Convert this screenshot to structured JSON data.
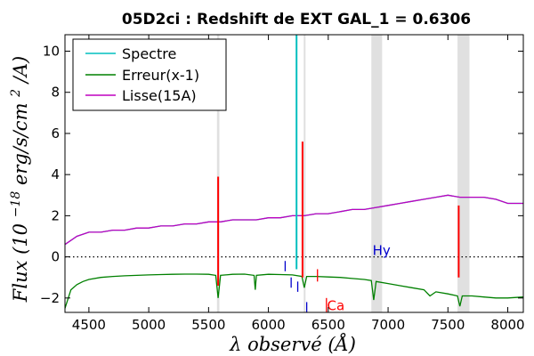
{
  "chart_data": {
    "type": "line",
    "title": "05D2ci : Redshift de EXT GAL_1 = 0.6306",
    "xlabel": "λ observé (Å)",
    "ylabel": "Flux (10^-18 erg/s/cm^2/A)",
    "ylabel_parts": {
      "prefix": "Flux (10",
      "exp": "−18",
      "mid": "erg/s/cm",
      "sq": "2",
      "suffix": "/A)"
    },
    "xlim": [
      4300,
      8130
    ],
    "ylim": [
      -2.7,
      10.8
    ],
    "x_ticks": [
      4500,
      5000,
      5500,
      6000,
      6500,
      7000,
      7500,
      8000
    ],
    "y_ticks": [
      -2,
      0,
      2,
      4,
      6,
      8,
      10
    ],
    "legend": {
      "placement": "top-left",
      "entries": [
        "Spectre",
        "Erreur(x-1)",
        "Lisse(15A)"
      ]
    },
    "series_colors": {
      "Spectre": "#00bfbf",
      "Erreur(x-1)": "#008000",
      "Lisse(15A)": "#bf00bf"
    },
    "series": [
      {
        "name": "Spectre",
        "x": [
          4300,
          4400,
          4500,
          4600,
          4700,
          4800,
          4900,
          5000,
          5100,
          5200,
          5300,
          5400,
          5500,
          5600,
          5700,
          5800,
          5900,
          6000,
          6100,
          6200,
          6300,
          6400,
          6500,
          6600,
          6700,
          6800,
          6900,
          7000,
          7100,
          7200,
          7300,
          7400,
          7500,
          7600,
          7700,
          7800,
          7900,
          8000,
          8130
        ],
        "y": [
          0.6,
          1.0,
          1.2,
          1.2,
          1.3,
          1.3,
          1.4,
          1.4,
          1.5,
          1.5,
          1.6,
          1.6,
          1.7,
          1.7,
          1.8,
          1.8,
          1.8,
          1.9,
          1.9,
          2.0,
          2.0,
          2.1,
          2.1,
          2.2,
          2.3,
          2.3,
          2.4,
          2.5,
          2.6,
          2.7,
          2.8,
          2.9,
          3.0,
          2.9,
          2.9,
          2.9,
          2.8,
          2.6,
          2.6
        ]
      },
      {
        "name": "Lisse(15A)",
        "x": [
          4300,
          4400,
          4500,
          4600,
          4700,
          4800,
          4900,
          5000,
          5100,
          5200,
          5300,
          5400,
          5500,
          5600,
          5700,
          5800,
          5900,
          6000,
          6100,
          6200,
          6300,
          6400,
          6500,
          6600,
          6700,
          6800,
          6900,
          7000,
          7100,
          7200,
          7300,
          7400,
          7500,
          7600,
          7700,
          7800,
          7900,
          8000,
          8130
        ],
        "y": [
          0.6,
          1.0,
          1.2,
          1.2,
          1.3,
          1.3,
          1.4,
          1.4,
          1.5,
          1.5,
          1.6,
          1.6,
          1.7,
          1.7,
          1.8,
          1.8,
          1.8,
          1.9,
          1.9,
          2.0,
          2.0,
          2.1,
          2.1,
          2.2,
          2.3,
          2.3,
          2.4,
          2.5,
          2.6,
          2.7,
          2.8,
          2.9,
          3.0,
          2.9,
          2.9,
          2.9,
          2.8,
          2.6,
          2.6
        ]
      },
      {
        "name": "Erreur(x-1)",
        "x": [
          4300,
          4350,
          4400,
          4450,
          4500,
          4600,
          4700,
          4800,
          4900,
          5000,
          5100,
          5200,
          5300,
          5400,
          5500,
          5560,
          5580,
          5600,
          5700,
          5800,
          5880,
          5890,
          5900,
          6000,
          6100,
          6200,
          6280,
          6300,
          6320,
          6400,
          6500,
          6600,
          6700,
          6800,
          6860,
          6880,
          6900,
          7000,
          7100,
          7200,
          7300,
          7350,
          7400,
          7500,
          7580,
          7600,
          7620,
          7700,
          7800,
          7900,
          8000,
          8130
        ],
        "y": [
          -2.5,
          -1.6,
          -1.35,
          -1.2,
          -1.1,
          -1.0,
          -0.95,
          -0.92,
          -0.9,
          -0.88,
          -0.86,
          -0.85,
          -0.84,
          -0.84,
          -0.85,
          -0.9,
          -2.0,
          -0.9,
          -0.85,
          -0.84,
          -0.9,
          -1.6,
          -0.9,
          -0.85,
          -0.86,
          -0.88,
          -0.95,
          -1.5,
          -0.95,
          -0.95,
          -0.98,
          -1.0,
          -1.05,
          -1.1,
          -1.15,
          -2.1,
          -1.2,
          -1.3,
          -1.4,
          -1.5,
          -1.6,
          -1.9,
          -1.7,
          -1.8,
          -1.9,
          -2.4,
          -1.9,
          -1.9,
          -1.95,
          -2.0,
          -2.0,
          -1.95
        ]
      }
    ],
    "spike_features": [
      {
        "x": 5580,
        "y_low": -1.4,
        "y_high": 3.9,
        "color": "#ff0000"
      },
      {
        "x": 6235,
        "y_low": -0.6,
        "y_high": 10.8,
        "color": "#00bfbf"
      },
      {
        "x": 6285,
        "y_low": -1.0,
        "y_high": 5.6,
        "color": "#ff0000"
      },
      {
        "x": 7590,
        "y_low": -1.0,
        "y_high": 2.5,
        "color": "#ff0000"
      }
    ],
    "telluric_bands": [
      [
        5570,
        5590
      ],
      [
        6295,
        6310
      ],
      [
        6860,
        6950
      ],
      [
        7580,
        7680
      ]
    ],
    "zero_line": 0,
    "line_markers": [
      {
        "x": 6140,
        "y_low": -0.7,
        "y_high": -0.2,
        "color": "#0000cc"
      },
      {
        "x": 6190,
        "y_low": -1.5,
        "y_high": -1.0,
        "color": "#0000cc"
      },
      {
        "x": 6245,
        "y_low": -1.7,
        "y_high": -1.2,
        "color": "#0000cc"
      },
      {
        "x": 6320,
        "y_low": -2.7,
        "y_high": -2.2,
        "color": "#0000cc"
      },
      {
        "x": 6410,
        "y_low": -1.2,
        "y_high": -0.6,
        "color": "#ff0000"
      },
      {
        "x": 6485,
        "y_low": -2.7,
        "y_high": -2.0,
        "color": "#ff0000"
      }
    ],
    "line_labels": [
      {
        "text": "Hy",
        "x": 6870,
        "y": 0.1,
        "color": "#0000cc"
      },
      {
        "text": "Ca",
        "x": 6490,
        "y": -2.6,
        "color": "#ff0000"
      }
    ]
  }
}
